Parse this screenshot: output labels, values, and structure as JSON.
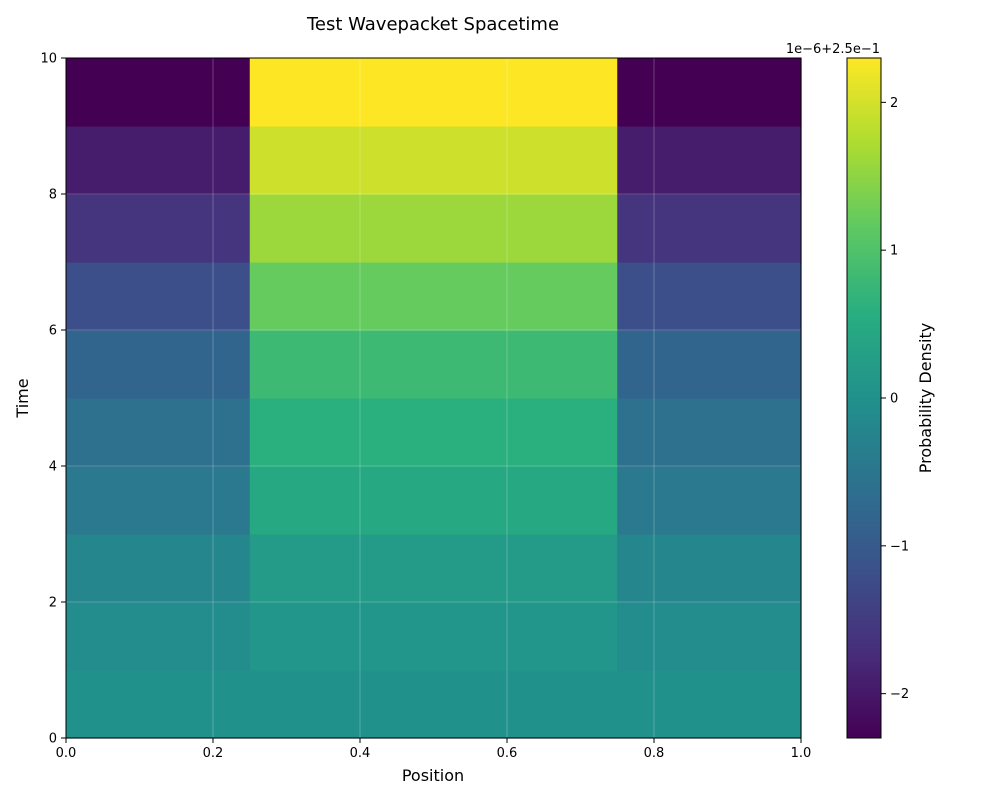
{
  "chart_data": {
    "type": "heatmap",
    "title": "Test Wavepacket Spacetime",
    "xlabel": "Position",
    "ylabel": "Time",
    "xlim": [
      0,
      1
    ],
    "ylim": [
      0,
      10
    ],
    "x_edges": [
      0,
      0.25,
      0.75,
      1
    ],
    "y_edges": [
      0,
      1,
      2,
      3,
      4,
      5,
      6,
      7,
      8,
      9,
      10
    ],
    "x_ticks": [
      0,
      0.2,
      0.4,
      0.6,
      0.8,
      1.0
    ],
    "x_tick_labels": [
      "0.0",
      "0.2",
      "0.4",
      "0.6",
      "0.8",
      "1.0"
    ],
    "y_ticks": [
      0,
      2,
      4,
      6,
      8,
      10
    ],
    "y_tick_labels": [
      "0",
      "2",
      "4",
      "6",
      "8",
      "10"
    ],
    "grid": true,
    "z_offset_scaled": [
      [
        0.0,
        0.0,
        0.0
      ],
      [
        -0.1,
        0.1,
        -0.1
      ],
      [
        -0.2,
        0.2,
        -0.2
      ],
      [
        -0.45,
        0.45,
        -0.45
      ],
      [
        -0.6,
        0.6,
        -0.6
      ],
      [
        -0.8,
        0.8,
        -0.8
      ],
      [
        -1.2,
        1.2,
        -1.2
      ],
      [
        -1.6,
        1.6,
        -1.6
      ],
      [
        -1.95,
        1.95,
        -1.95
      ],
      [
        -2.3,
        2.3,
        -2.3
      ]
    ],
    "colorbar": {
      "label": "Probability Density",
      "offset_text": "1e−6+2.5e−1",
      "vmin": -2.3,
      "vmax": 2.3,
      "ticks": [
        -2,
        -1,
        0,
        1,
        2
      ],
      "tick_labels": [
        "−2",
        "−1",
        "0",
        "1",
        "2"
      ],
      "colormap": "viridis"
    }
  }
}
